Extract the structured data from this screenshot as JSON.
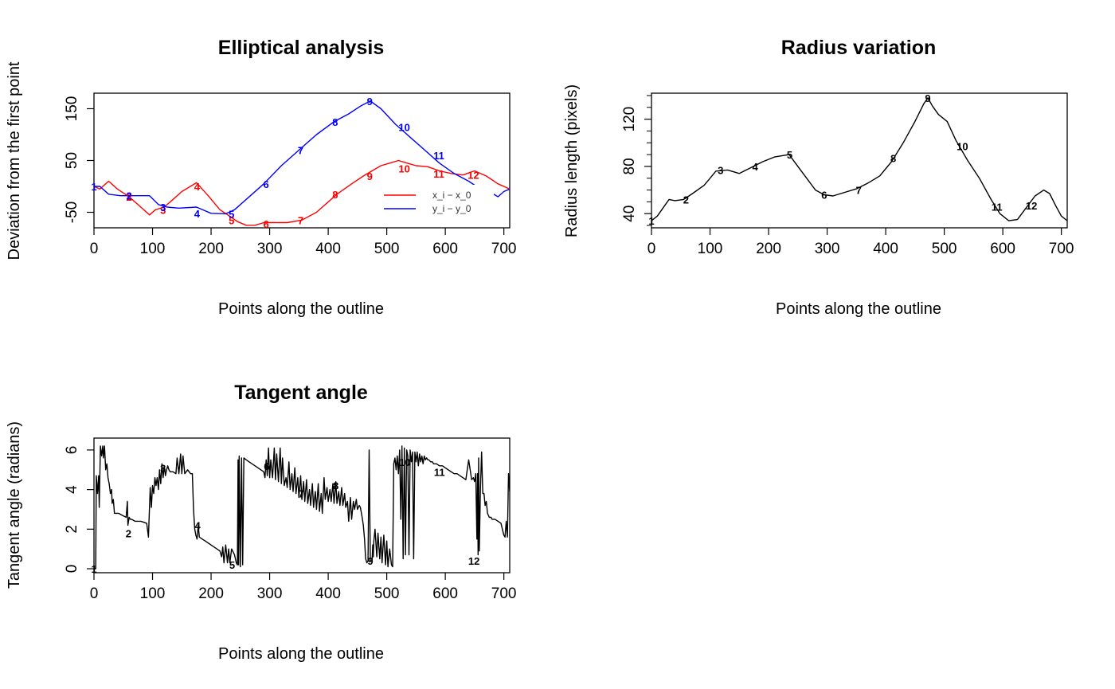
{
  "chart_data": [
    {
      "type": "line",
      "title": "Elliptical analysis",
      "xlabel": "Points along the outline",
      "ylabel": "Deviation from the first point",
      "xlim": [
        0,
        710
      ],
      "ylim": [
        -80,
        180
      ],
      "xticks": [
        0,
        100,
        200,
        300,
        400,
        500,
        600,
        700
      ],
      "yticks": [
        -50,
        50,
        150
      ],
      "legend_position": "inside-lower-right",
      "series": [
        {
          "name": "x_i − x_0",
          "color": "#ff0000",
          "x": [
            0,
            10,
            25,
            40,
            60,
            80,
            95,
            105,
            120,
            135,
            150,
            175,
            195,
            215,
            235,
            245,
            260,
            275,
            290,
            310,
            330,
            355,
            380,
            415,
            440,
            460,
            475,
            490,
            505,
            520,
            535,
            550,
            570,
            590,
            610,
            630,
            650,
            670,
            690,
            710
          ],
          "y": [
            0,
            -5,
            10,
            -5,
            -20,
            -40,
            -55,
            -45,
            -40,
            -25,
            -10,
            7,
            -18,
            -45,
            -60,
            -68,
            -75,
            -75,
            -70,
            -70,
            -70,
            -65,
            -50,
            -15,
            5,
            20,
            30,
            40,
            45,
            50,
            45,
            40,
            38,
            30,
            25,
            22,
            30,
            20,
            5,
            -5
          ]
        },
        {
          "name": "y_i − y_0",
          "color": "#0000ff",
          "x": [
            0,
            10,
            25,
            45,
            70,
            95,
            110,
            125,
            145,
            175,
            200,
            225,
            240,
            260,
            290,
            320,
            350,
            380,
            410,
            435,
            455,
            472,
            490,
            515,
            540,
            565,
            590,
            615,
            640,
            660,
            675,
            690,
            700,
            710
          ],
          "y": [
            0,
            0,
            -15,
            -18,
            -18,
            -18,
            -35,
            -40,
            -42,
            -40,
            -52,
            -53,
            -45,
            -25,
            5,
            40,
            70,
            100,
            125,
            140,
            155,
            165,
            150,
            120,
            95,
            70,
            45,
            25,
            10,
            -5,
            -10,
            -20,
            -10,
            -5
          ]
        }
      ],
      "markers": [
        {
          "label": "1",
          "x": 0,
          "y": 0,
          "color": "#0000ff"
        },
        {
          "label": "2",
          "x": 60,
          "y": -20,
          "color": "#ff0000"
        },
        {
          "label": "2",
          "x": 60,
          "y": -18,
          "color": "#0000ff"
        },
        {
          "label": "3",
          "x": 118,
          "y": -45,
          "color": "#ff0000"
        },
        {
          "label": "3",
          "x": 118,
          "y": -40,
          "color": "#0000ff"
        },
        {
          "label": "4",
          "x": 176,
          "y": 0,
          "color": "#ff0000"
        },
        {
          "label": "4",
          "x": 176,
          "y": -52,
          "color": "#0000ff"
        },
        {
          "label": "5",
          "x": 235,
          "y": -65,
          "color": "#ff0000"
        },
        {
          "label": "5",
          "x": 235,
          "y": -53,
          "color": "#0000ff"
        },
        {
          "label": "6",
          "x": 294,
          "y": -72,
          "color": "#ff0000"
        },
        {
          "label": "6",
          "x": 294,
          "y": 5,
          "color": "#0000ff"
        },
        {
          "label": "7",
          "x": 353,
          "y": -65,
          "color": "#ff0000"
        },
        {
          "label": "7",
          "x": 353,
          "y": 70,
          "color": "#0000ff"
        },
        {
          "label": "8",
          "x": 412,
          "y": -15,
          "color": "#ff0000"
        },
        {
          "label": "8",
          "x": 412,
          "y": 125,
          "color": "#0000ff"
        },
        {
          "label": "9",
          "x": 471,
          "y": 20,
          "color": "#ff0000"
        },
        {
          "label": "9",
          "x": 471,
          "y": 165,
          "color": "#0000ff"
        },
        {
          "label": "10",
          "x": 530,
          "y": 35,
          "color": "#ff0000"
        },
        {
          "label": "10",
          "x": 530,
          "y": 115,
          "color": "#0000ff"
        },
        {
          "label": "11",
          "x": 589,
          "y": 25,
          "color": "#ff0000"
        },
        {
          "label": "11",
          "x": 589,
          "y": 60,
          "color": "#0000ff"
        },
        {
          "label": "12",
          "x": 648,
          "y": 22,
          "color": "#ff0000"
        },
        {
          "label": "12",
          "x": 648,
          "y": -5,
          "color": "#0000ff"
        }
      ]
    },
    {
      "type": "line",
      "title": "Radius variation",
      "xlabel": "Points along the outline",
      "ylabel": "Radius length (pixels)",
      "xlim": [
        0,
        710
      ],
      "ylim": [
        28,
        142
      ],
      "xticks": [
        0,
        100,
        200,
        300,
        400,
        500,
        600,
        700
      ],
      "yticks": [
        40,
        80,
        120
      ],
      "color": "#000000",
      "x": [
        0,
        10,
        20,
        30,
        40,
        55,
        70,
        90,
        110,
        130,
        150,
        170,
        190,
        210,
        235,
        250,
        265,
        280,
        295,
        310,
        330,
        350,
        370,
        390,
        410,
        430,
        450,
        465,
        472,
        480,
        490,
        505,
        520,
        540,
        560,
        580,
        595,
        610,
        625,
        640,
        655,
        670,
        680,
        690,
        700,
        710
      ],
      "y": [
        34,
        38,
        45,
        52,
        51,
        52,
        57,
        64,
        76,
        77,
        74,
        79,
        84,
        88,
        90,
        80,
        70,
        60,
        56,
        55,
        58,
        61,
        66,
        72,
        84,
        100,
        118,
        133,
        138,
        131,
        124,
        118,
        102,
        85,
        70,
        52,
        40,
        34,
        35,
        45,
        55,
        60,
        57,
        47,
        38,
        34
      ],
      "markers": [
        {
          "label": "1",
          "x": 0,
          "y": 34
        },
        {
          "label": "2",
          "x": 59,
          "y": 52
        },
        {
          "label": "3",
          "x": 118,
          "y": 77
        },
        {
          "label": "4",
          "x": 177,
          "y": 80
        },
        {
          "label": "5",
          "x": 236,
          "y": 90
        },
        {
          "label": "6",
          "x": 295,
          "y": 56
        },
        {
          "label": "7",
          "x": 354,
          "y": 60
        },
        {
          "label": "8",
          "x": 413,
          "y": 87
        },
        {
          "label": "9",
          "x": 472,
          "y": 138
        },
        {
          "label": "10",
          "x": 531,
          "y": 97
        },
        {
          "label": "11",
          "x": 590,
          "y": 46
        },
        {
          "label": "12",
          "x": 649,
          "y": 47
        }
      ]
    },
    {
      "type": "line",
      "title": "Tangent angle",
      "xlabel": "Points along the outline",
      "ylabel": "Tangent angle (radians)",
      "xlim": [
        0,
        710
      ],
      "ylim": [
        -0.2,
        6.6
      ],
      "xticks": [
        0,
        100,
        200,
        300,
        400,
        500,
        600,
        700
      ],
      "yticks": [
        0,
        2,
        4,
        6
      ],
      "color": "#000000",
      "x": [
        0,
        3,
        4,
        6,
        8,
        9,
        11,
        13,
        15,
        16,
        18,
        20,
        22,
        24,
        26,
        28,
        30,
        31,
        33,
        35,
        38,
        42,
        48,
        55,
        57,
        58,
        60,
        62,
        64,
        70,
        80,
        90,
        93,
        94,
        96,
        98,
        100,
        102,
        104,
        106,
        108,
        110,
        112,
        114,
        116,
        118,
        120,
        122,
        124,
        126,
        128,
        130,
        135,
        140,
        142,
        145,
        148,
        150,
        152,
        155,
        160,
        165,
        168,
        170,
        172,
        174,
        176,
        178,
        180,
        185,
        190,
        195,
        200,
        205,
        210,
        215,
        218,
        220,
        222,
        225,
        228,
        230,
        232,
        235,
        240,
        243,
        245,
        246,
        247,
        248,
        250,
        252,
        254,
        256,
        260,
        265,
        270,
        275,
        280,
        285,
        290,
        292,
        294,
        296,
        298,
        300,
        302,
        305,
        308,
        310,
        312,
        315,
        318,
        320,
        322,
        325,
        328,
        330,
        333,
        335,
        338,
        340,
        343,
        345,
        348,
        350,
        353,
        355,
        358,
        360,
        363,
        365,
        368,
        370,
        373,
        375,
        378,
        380,
        383,
        385,
        388,
        390,
        393,
        395,
        398,
        400,
        403,
        405,
        408,
        410,
        413,
        415,
        418,
        420,
        423,
        425,
        428,
        430,
        433,
        435,
        438,
        440,
        443,
        445,
        448,
        450,
        453,
        455,
        458,
        460,
        462,
        463,
        464,
        466,
        468,
        470,
        472,
        473,
        474,
        475,
        476,
        477,
        478,
        480,
        483,
        485,
        488,
        490,
        492,
        495,
        498,
        500,
        502,
        505,
        508,
        510,
        512,
        514,
        516,
        518,
        520,
        522,
        524,
        526,
        528,
        530,
        532,
        534,
        536,
        538,
        540,
        542,
        544,
        546,
        548,
        550,
        552,
        554,
        556,
        558,
        560,
        562,
        564,
        566,
        568,
        570,
        572,
        575,
        578,
        580,
        585,
        590,
        595,
        600,
        605,
        610,
        615,
        620,
        625,
        630,
        635,
        640,
        645,
        648,
        650,
        652,
        654,
        655,
        656,
        657,
        658,
        660,
        662,
        664,
        666,
        668,
        670,
        672,
        675,
        678,
        680,
        685,
        690,
        695,
        700,
        702,
        704,
        706,
        708,
        710
      ],
      "y": [
        0,
        0,
        4.7,
        3.8,
        4.7,
        3.1,
        6.2,
        5.7,
        6.2,
        5.6,
        6.2,
        5.0,
        5.3,
        4.6,
        4.3,
        3.8,
        4.0,
        3.3,
        3.5,
        2.8,
        2.8,
        2.8,
        2.7,
        2.6,
        3.4,
        2.2,
        2.6,
        2.5,
        2.5,
        2.4,
        2.4,
        2.3,
        1.6,
        2.4,
        4.1,
        3.1,
        4.2,
        3.8,
        4.6,
        4.2,
        4.6,
        4.0,
        5.0,
        4.3,
        5.3,
        4.6,
        5.2,
        4.7,
        5.0,
        5.2,
        5.0,
        4.9,
        4.9,
        4.8,
        5.6,
        4.8,
        5.8,
        4.8,
        5.7,
        4.8,
        5.0,
        4.8,
        4.8,
        3.0,
        2.0,
        1.7,
        1.5,
        2.2,
        1.6,
        1.5,
        1.4,
        1.3,
        1.2,
        1.1,
        1.0,
        0.9,
        0.6,
        1.1,
        0.3,
        1.2,
        0.3,
        1.0,
        0.3,
        1.0,
        0.7,
        0.3,
        0.2,
        5.5,
        0.2,
        5.7,
        0.1,
        5.6,
        0.2,
        5.6,
        5.5,
        5.4,
        5.3,
        5.2,
        5.1,
        5.0,
        4.9,
        4.6,
        5.5,
        4.7,
        6.1,
        4.6,
        5.5,
        4.6,
        6.1,
        4.5,
        5.8,
        4.4,
        6.1,
        4.3,
        5.6,
        4.2,
        4.6,
        4.1,
        5.4,
        4.0,
        4.8,
        3.9,
        5.1,
        3.8,
        4.6,
        3.6,
        4.7,
        3.5,
        4.4,
        3.4,
        4.5,
        3.3,
        4.0,
        3.2,
        4.3,
        3.1,
        3.9,
        3.0,
        4.3,
        2.9,
        3.8,
        2.8,
        4.6,
        3.5,
        4.1,
        3.4,
        4.0,
        3.4,
        4.3,
        3.3,
        4.4,
        3.3,
        3.9,
        3.2,
        4.1,
        3.2,
        3.8,
        3.1,
        3.4,
        2.4,
        3.6,
        2.5,
        3.4,
        3.0,
        3.5,
        3.0,
        3.2,
        3.1,
        2.6,
        2.2,
        1.5,
        1.0,
        0.5,
        0.3,
        0.4,
        6.0,
        0.4,
        0.4,
        0.4,
        0.4,
        1.2,
        0.6,
        1.4,
        2.0,
        0.6,
        1.8,
        0.5,
        1.6,
        0.3,
        1.7,
        0.2,
        1.4,
        0.1,
        1.0,
        0.2,
        0.1,
        5.3,
        5.6,
        5.0,
        5.7,
        4.8,
        6.0,
        2.5,
        6.2,
        0.5,
        6.1,
        0.7,
        6.0,
        5.7,
        0.7,
        6.0,
        5.4,
        5.9,
        0.5,
        5.9,
        5.4,
        5.9,
        5.2,
        5.8,
        5.4,
        5.7,
        5.3,
        5.7,
        5.5,
        5.6,
        5.5,
        5.5,
        5.4,
        5.4,
        5.3,
        5.3,
        5.2,
        5.2,
        5.1,
        5.0,
        4.9,
        4.8,
        4.8,
        4.7,
        4.6,
        4.5,
        5.5,
        4.5,
        4.6,
        4.4,
        4.8,
        1.5,
        4.8,
        0.7,
        5.6,
        0.9,
        4.0,
        5.9,
        3.8,
        3.8,
        3.2,
        3.4,
        2.8,
        2.6,
        2.6,
        2.5,
        2.5,
        2.4,
        2.3,
        1.7,
        1.6,
        2.4,
        1.6,
        4.8,
        3.9
      ],
      "markers": [
        {
          "label": "1",
          "x": 0,
          "y": 0
        },
        {
          "label": "2",
          "x": 59,
          "y": 1.8
        },
        {
          "label": "3",
          "x": 118,
          "y": 5.1
        },
        {
          "label": "4",
          "x": 177,
          "y": 2.2
        },
        {
          "label": "5",
          "x": 236,
          "y": 0.2
        },
        {
          "label": "6",
          "x": 295,
          "y": 5.2
        },
        {
          "label": "7",
          "x": 354,
          "y": 3.8
        },
        {
          "label": "8",
          "x": 413,
          "y": 4.2
        },
        {
          "label": "9",
          "x": 472,
          "y": 0.4
        },
        {
          "label": "10",
          "x": 531,
          "y": 5.4
        },
        {
          "label": "11",
          "x": 590,
          "y": 4.9
        },
        {
          "label": "12",
          "x": 649,
          "y": 0.4
        }
      ]
    }
  ]
}
